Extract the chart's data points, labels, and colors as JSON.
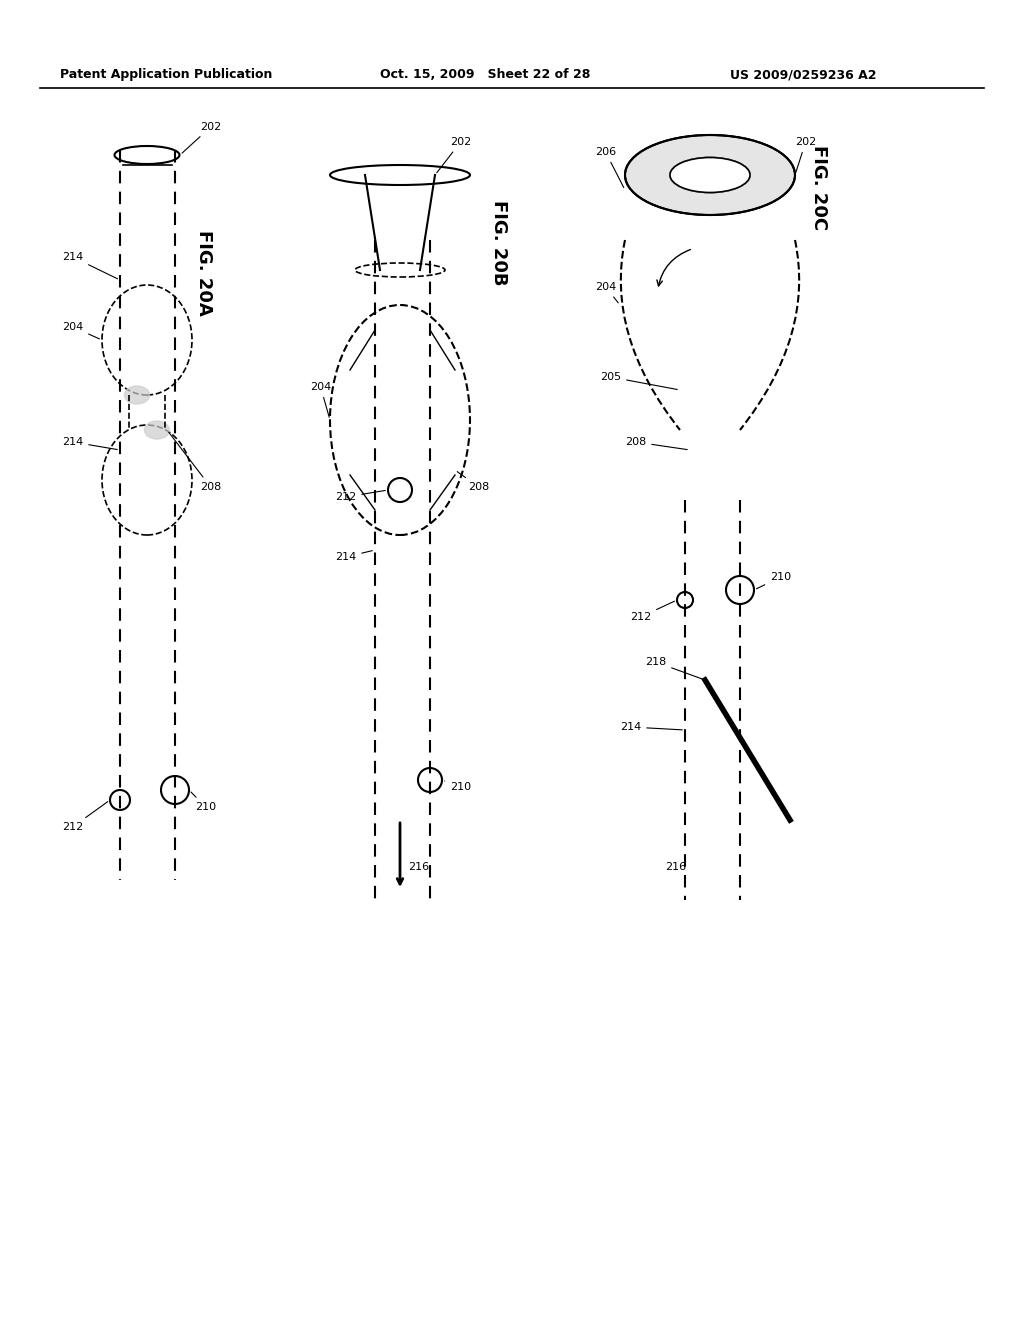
{
  "header_left": "Patent Application Publication",
  "header_center": "Oct. 15, 2009   Sheet 22 of 28",
  "header_right": "US 2009/0259236 A2",
  "fig_labels": [
    "FIG. 20A",
    "FIG. 20B",
    "FIG. 20C"
  ],
  "part_labels": [
    "202",
    "204",
    "205",
    "206",
    "208",
    "210",
    "212",
    "214",
    "216",
    "218"
  ],
  "bg_color": "#ffffff",
  "line_color": "#000000",
  "gray_color": "#888888",
  "light_gray": "#cccccc"
}
